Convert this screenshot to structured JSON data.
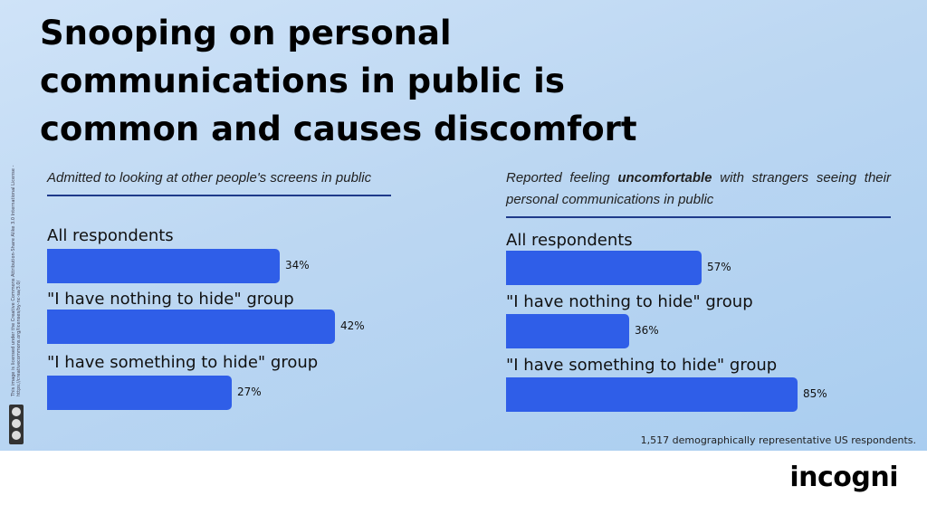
{
  "title_lines": [
    "Snooping on personal",
    "communications in public is",
    "common and  causes discomfort"
  ],
  "footnote": "1,517 demographically representative US respondents.",
  "brand": "incogni",
  "license_text": "This image is licensed under the Creative Commons Attribution-Share Alike 3.0 International License - https://creativecommons.org/licenses/by-nc-sa/3.0/",
  "colors": {
    "bar": "#2f5ee8",
    "rule": "#1e3a8a",
    "background_top": "#cfe3f8",
    "background_bottom": "#a9cdf0"
  },
  "chart_data": [
    {
      "type": "bar",
      "orientation": "horizontal",
      "subtitle": "Admitted to looking at other people's screens in public",
      "categories": [
        "All respondents",
        "\"I have nothing to hide\" group",
        "\"I have something to hide\" group"
      ],
      "values": [
        34,
        42,
        27
      ],
      "value_labels": [
        "34%",
        "42%",
        "27%"
      ],
      "unit": "%",
      "xlim": [
        0,
        42
      ]
    },
    {
      "type": "bar",
      "orientation": "horizontal",
      "subtitle_parts": [
        "Reported feeling ",
        "uncomfortable",
        " with strangers seeing their personal communications in public"
      ],
      "categories": [
        "All respondents",
        "\"I have nothing to hide\" group",
        "\"I have something to hide\" group"
      ],
      "values": [
        57,
        36,
        85
      ],
      "value_labels": [
        "57%",
        "36%",
        "85%"
      ],
      "unit": "%",
      "xlim": [
        0,
        85
      ]
    }
  ]
}
